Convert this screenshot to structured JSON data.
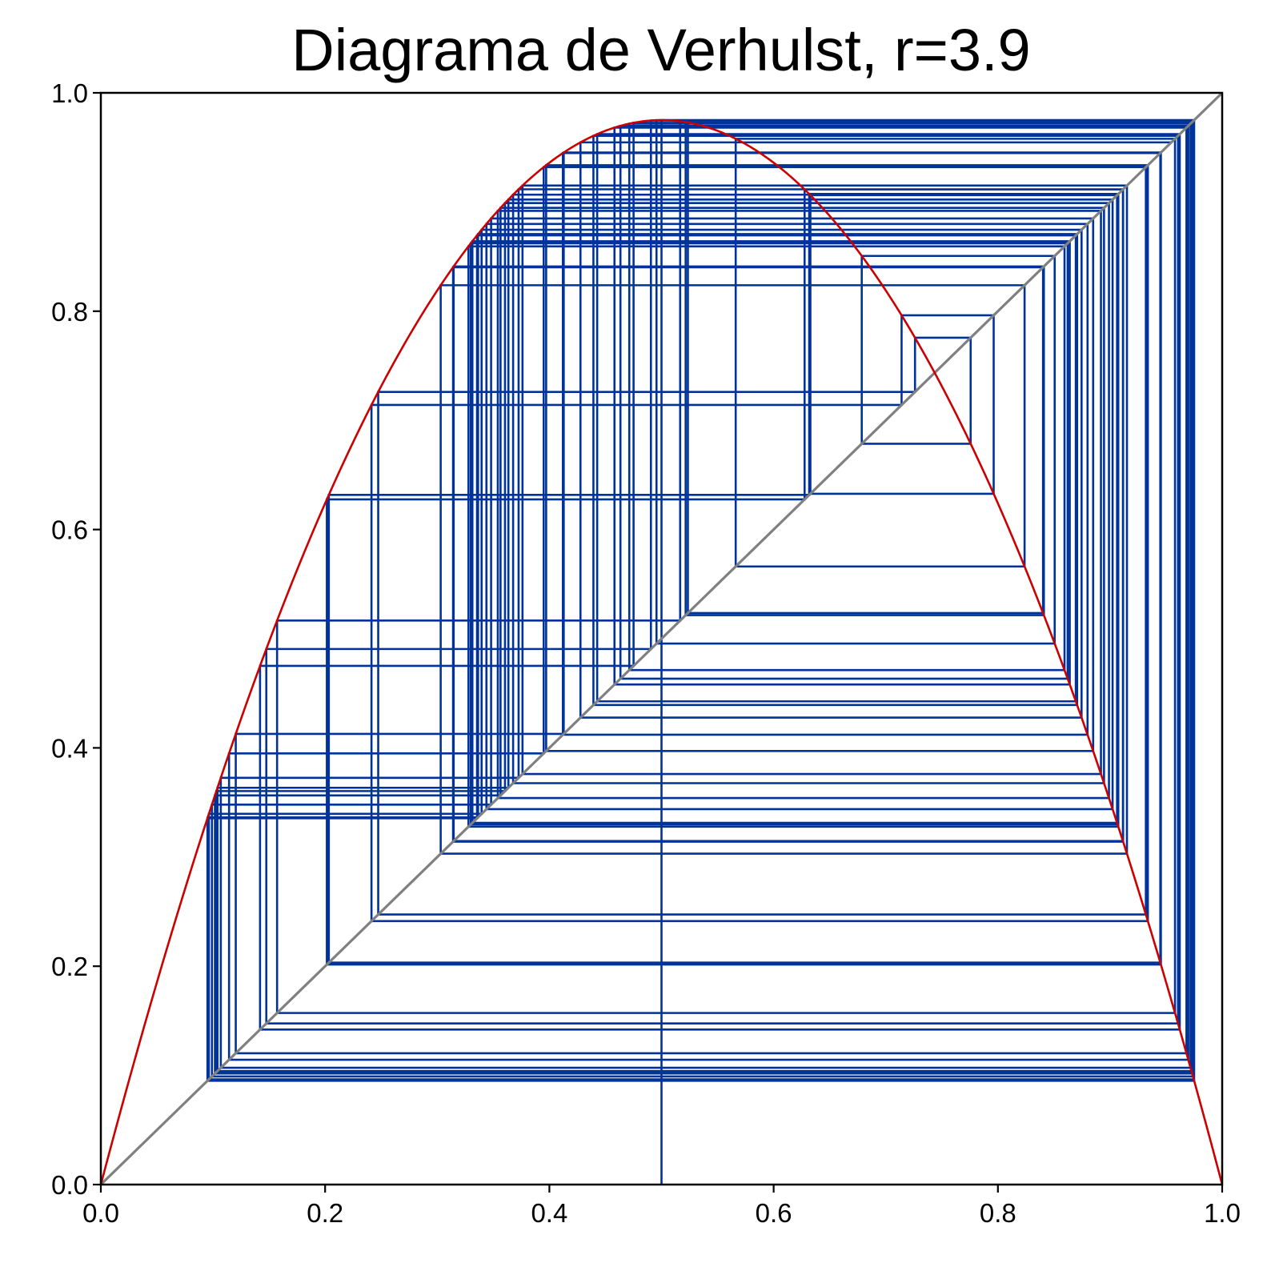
{
  "chart_data": {
    "type": "line",
    "title": "Diagrama de Verhulst, r=3.9",
    "xlabel": "",
    "ylabel": "",
    "xlim": [
      0.0,
      1.0
    ],
    "ylim": [
      0.0,
      1.0
    ],
    "x_ticks": [
      0.0,
      0.2,
      0.4,
      0.6,
      0.8,
      1.0
    ],
    "y_ticks": [
      0.0,
      0.2,
      0.4,
      0.6,
      0.8,
      1.0
    ],
    "x_tick_labels": [
      "0.0",
      "0.2",
      "0.4",
      "0.6",
      "0.8",
      "1.0"
    ],
    "y_tick_labels": [
      "0.0",
      "0.2",
      "0.4",
      "0.6",
      "0.8",
      "1.0"
    ],
    "grid": false,
    "legend": "none",
    "r": 3.9,
    "x0": 0.5,
    "iterations": 100,
    "series": [
      {
        "kind": "logistic-map-curve",
        "formula": "r*x*(1-x)",
        "color": "#cc0000"
      },
      {
        "kind": "identity-line",
        "formula": "y=x",
        "color": "#808080"
      },
      {
        "kind": "cobweb",
        "color": "#003399"
      }
    ]
  }
}
